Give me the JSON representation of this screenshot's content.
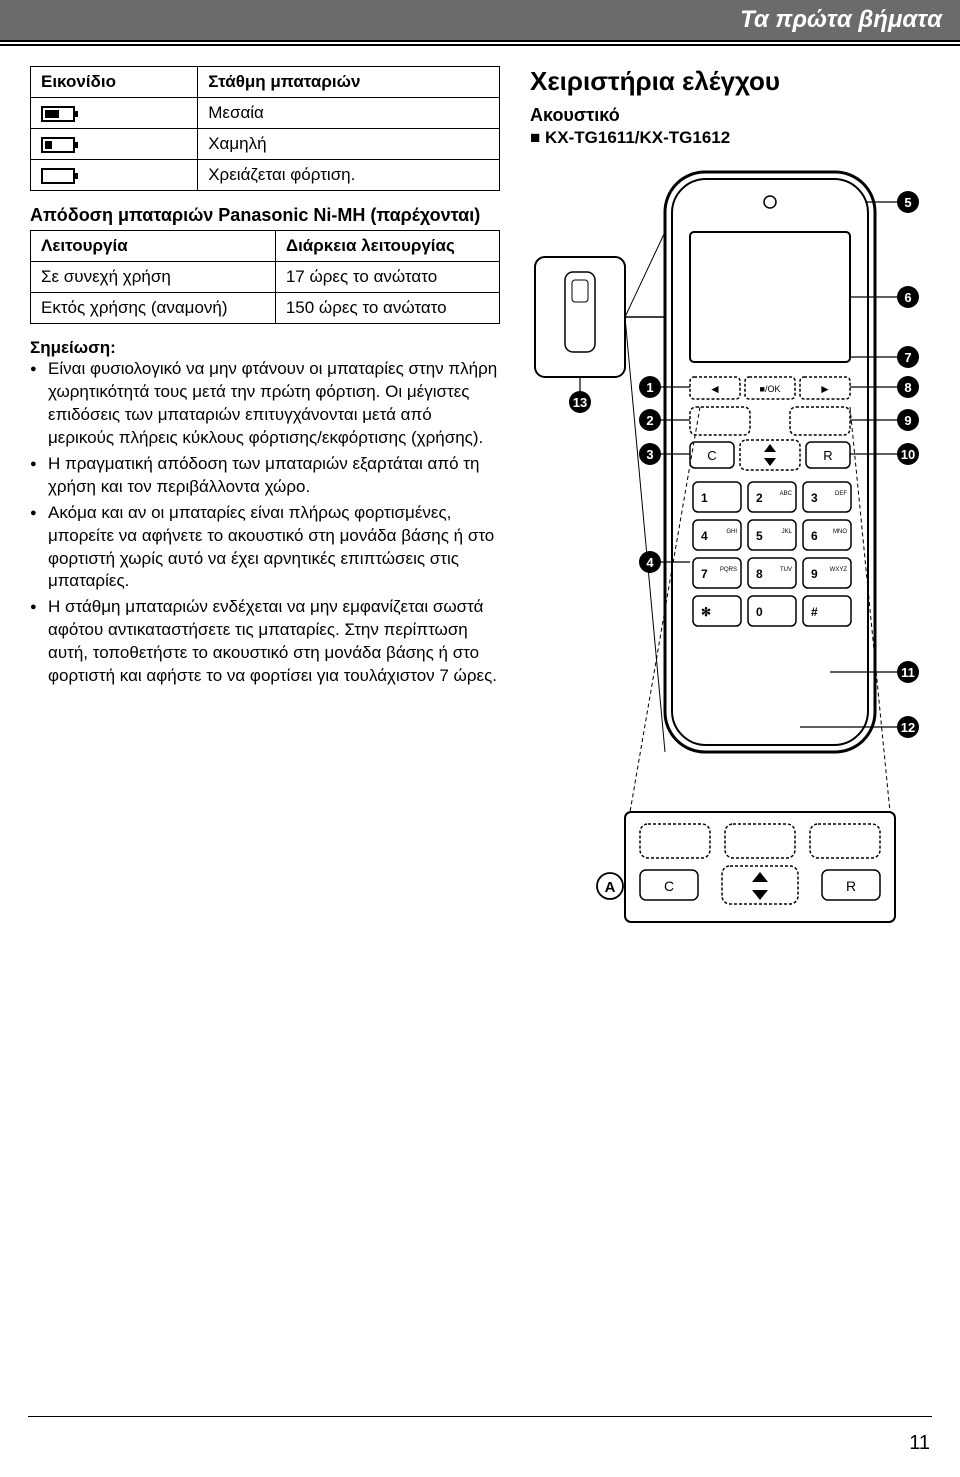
{
  "header": {
    "title": "Τα πρώτα βήματα"
  },
  "battery_table": {
    "headers": [
      "Εικονίδιο",
      "Στάθμη μπαταριών"
    ],
    "rows": [
      {
        "fill_pct": 55,
        "label": "Μεσαία"
      },
      {
        "fill_pct": 25,
        "label": "Χαμηλή"
      },
      {
        "fill_pct": 0,
        "label": "Χρειάζεται φόρτιση."
      }
    ]
  },
  "performance": {
    "title": "Απόδοση μπαταριών Panasonic Ni-MH (παρέχονται)",
    "headers": [
      "Λειτουργία",
      "Διάρκεια λειτουργίας"
    ],
    "rows": [
      {
        "mode": "Σε συνεχή χρήση",
        "duration": "17 ώρες το ανώτατο"
      },
      {
        "mode": "Εκτός χρήσης (αναμονή)",
        "duration": "150 ώρες το ανώτατο"
      }
    ]
  },
  "notes": {
    "heading": "Σημείωση:",
    "items": [
      "Είναι φυσιολογικό να μην φτάνουν οι μπαταρίες στην πλήρη χωρητικότητά τους μετά την πρώτη φόρτιση. Οι μέγιστες επιδόσεις των μπαταριών επιτυγχάνονται μετά από μερικούς πλήρεις κύκλους φόρτισης/εκφόρτισης (χρήσης).",
      "Η πραγματική απόδοση των μπαταριών εξαρτάται από τη χρήση και τον περιβάλλοντα χώρο.",
      "Ακόμα και αν οι μπαταρίες είναι πλήρως φορτισμένες, μπορείτε να αφήνετε το ακουστικό στη μονάδα βάσης ή στο φορτιστή χωρίς αυτό να έχει αρνητικές επιπτώσεις στις μπαταρίες.",
      "Η στάθμη μπαταριών ενδέχεται να μην εμφανίζεται σωστά αφότου αντικαταστήσετε τις μπαταρίες. Στην περίπτωση αυτή, τοποθετήστε το ακουστικό στη μονάδα βάσης ή στο φορτιστή και αφήστε το να φορτίσει για τουλάχιστον 7 ώρες."
    ]
  },
  "controls": {
    "title": "Χειριστήρια ελέγχου",
    "subtitle": "Ακουστικό",
    "model_prefix": "■",
    "model": "KX-TG1611/KX-TG1612"
  },
  "diagram": {
    "callouts_left": [
      "1",
      "2",
      "3",
      "4"
    ],
    "callouts_right": [
      "5",
      "6",
      "7",
      "8",
      "9",
      "10",
      "11",
      "12"
    ],
    "callout_top_left": "13",
    "label_A": "A",
    "keypad": [
      [
        "1",
        "2 ABC",
        "3 DEF"
      ],
      [
        "4 GHI",
        "5 JKL",
        "6 MNO"
      ],
      [
        "7 PQRS",
        "8 TUV",
        "9 WXYZ"
      ],
      [
        "✻",
        "0",
        "#"
      ]
    ],
    "mid_buttons_left": "C",
    "mid_buttons_right": "R",
    "soft_keys": [
      "◄",
      "■/OK",
      "►"
    ],
    "colors": {
      "outline": "#000000",
      "fill": "#ffffff",
      "screen": "#ffffff",
      "dash": "#000000"
    }
  },
  "page_number": "11"
}
